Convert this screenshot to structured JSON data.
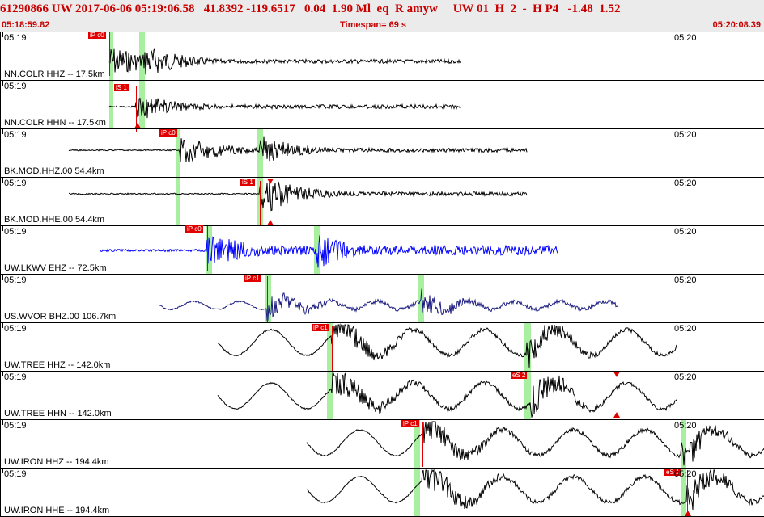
{
  "header": {
    "event_line": "61290866 UW 2017-06-06 05:19:06.58   41.8392 -119.6517   0.04  1.90 Ml  eq  R amyw     UW 01  H  2  -  H P4   -1.48  1.52",
    "start_time": "05:18:59.82",
    "timespan": "Timespan=  69 s",
    "end_time": "05:20:08.39"
  },
  "colors": {
    "pick": "#e00000",
    "window_band": "#a8f0a0",
    "trace_default": "#000000",
    "trace_lkwv": "#0000ff",
    "trace_wvor": "#1a1a80"
  },
  "panels": [
    {
      "label": "NN.COLR HHZ -- 17.5km",
      "tick_left": "05:19",
      "tick_right": "05:20",
      "pick": "iP c0",
      "trace_color": "#000000"
    },
    {
      "label": "NN.COLR HHN -- 17.5km",
      "tick_left": "05:19",
      "tick_right": "",
      "pick": "iS 1",
      "trace_color": "#000000"
    },
    {
      "label": "BK.MOD.HHZ.00 54.4km",
      "tick_left": "05:19",
      "tick_right": "05:20",
      "pick": "iP c0",
      "trace_color": "#000000"
    },
    {
      "label": "BK.MOD.HHE.00 54.4km",
      "tick_left": "05:19",
      "tick_right": "05:20",
      "pick": "iS 1",
      "trace_color": "#000000"
    },
    {
      "label": "UW.LKWV EHZ -- 72.5km",
      "tick_left": "05:19",
      "tick_right": "05:20",
      "pick": "iP c0",
      "trace_color": "#0000ff"
    },
    {
      "label": "US.WVOR BHZ.00 106.7km",
      "tick_left": "05:19",
      "tick_right": "05:20",
      "pick": "iP c1",
      "trace_color": "#1a1a80"
    },
    {
      "label": "UW.TREE HHZ -- 142.0km",
      "tick_left": "05:19",
      "tick_right": "05:20",
      "pick": "iP c1",
      "trace_color": "#000000"
    },
    {
      "label": "UW.TREE HHN -- 142.0km",
      "tick_left": "05:19",
      "tick_right": "05:20",
      "pick": "eS 2",
      "trace_color": "#000000"
    },
    {
      "label": "UW.IRON HHZ -- 194.4km",
      "tick_left": "05:19",
      "tick_right": "05:20",
      "pick": "iP c1",
      "trace_color": "#000000"
    },
    {
      "label": "UW.IRON HHE -- 194.4km",
      "tick_left": "05:19",
      "tick_right": "05:20",
      "pick": "eS 1",
      "trace_color": "#000000"
    }
  ]
}
